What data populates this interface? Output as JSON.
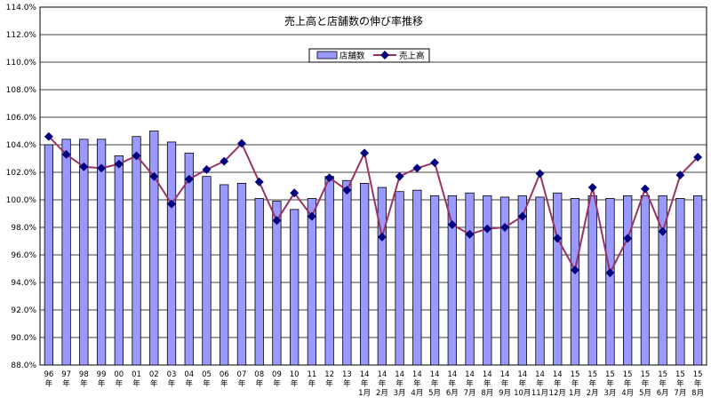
{
  "chart_data": {
    "type": "bar",
    "title": "売上高と店舗数の伸び率推移",
    "xlabel": "",
    "ylabel": "",
    "ylim": [
      88,
      114
    ],
    "yticks": [
      "88.0%",
      "90.0%",
      "92.0%",
      "94.0%",
      "96.0%",
      "98.0%",
      "100.0%",
      "102.0%",
      "104.0%",
      "106.0%",
      "108.0%",
      "110.0%",
      "112.0%",
      "114.0%"
    ],
    "grid": true,
    "legend": "top-center",
    "categories": [
      [
        "96",
        "年"
      ],
      [
        "97",
        "年"
      ],
      [
        "98",
        "年"
      ],
      [
        "99",
        "年"
      ],
      [
        "00",
        "年"
      ],
      [
        "01",
        "年"
      ],
      [
        "02",
        "年"
      ],
      [
        "03",
        "年"
      ],
      [
        "04",
        "年"
      ],
      [
        "05",
        "年"
      ],
      [
        "06",
        "年"
      ],
      [
        "07",
        "年"
      ],
      [
        "08",
        "年"
      ],
      [
        "09",
        "年"
      ],
      [
        "10",
        "年"
      ],
      [
        "11",
        "年"
      ],
      [
        "12",
        "年"
      ],
      [
        "13",
        "年"
      ],
      [
        "14",
        "年",
        "1月"
      ],
      [
        "14",
        "年",
        "2月"
      ],
      [
        "14",
        "年",
        "3月"
      ],
      [
        "14",
        "年",
        "4月"
      ],
      [
        "14",
        "年",
        "5月"
      ],
      [
        "14",
        "年",
        "6月"
      ],
      [
        "14",
        "年",
        "7月"
      ],
      [
        "14",
        "年",
        "8月"
      ],
      [
        "14",
        "年",
        "9月"
      ],
      [
        "14",
        "年",
        "10月"
      ],
      [
        "14",
        "年",
        "11月"
      ],
      [
        "14",
        "年",
        "12月"
      ],
      [
        "15",
        "年",
        "1月"
      ],
      [
        "15",
        "年",
        "2月"
      ],
      [
        "15",
        "年",
        "3月"
      ],
      [
        "15",
        "年",
        "4月"
      ],
      [
        "15",
        "年",
        "5月"
      ],
      [
        "15",
        "年",
        "6月"
      ],
      [
        "15",
        "年",
        "7月"
      ],
      [
        "15",
        "年",
        "8月"
      ]
    ],
    "series": [
      {
        "name": "店舗数",
        "kind": "bar",
        "color": "#9999ff",
        "values": [
          104.0,
          104.4,
          104.4,
          104.4,
          103.2,
          104.6,
          105.0,
          104.2,
          103.4,
          101.7,
          101.1,
          101.2,
          100.1,
          99.9,
          99.3,
          100.1,
          101.7,
          101.4,
          101.2,
          100.9,
          100.6,
          100.7,
          100.3,
          100.3,
          100.5,
          100.3,
          100.2,
          100.3,
          100.2,
          100.5,
          100.1,
          100.3,
          100.1,
          100.3,
          100.3,
          100.3,
          100.1,
          100.3
        ]
      },
      {
        "name": "売上高",
        "kind": "line",
        "color": "#993366",
        "marker_color": "#000080",
        "values": [
          104.6,
          103.3,
          102.4,
          102.3,
          102.6,
          103.2,
          101.7,
          99.7,
          101.5,
          102.2,
          102.8,
          104.1,
          101.3,
          98.5,
          100.5,
          98.8,
          101.6,
          100.7,
          103.4,
          97.3,
          101.7,
          102.3,
          102.7,
          98.2,
          97.5,
          97.9,
          98.0,
          98.8,
          101.9,
          97.2,
          94.9,
          100.9,
          94.7,
          97.2,
          100.8,
          97.7,
          101.8,
          103.1
        ]
      }
    ]
  }
}
